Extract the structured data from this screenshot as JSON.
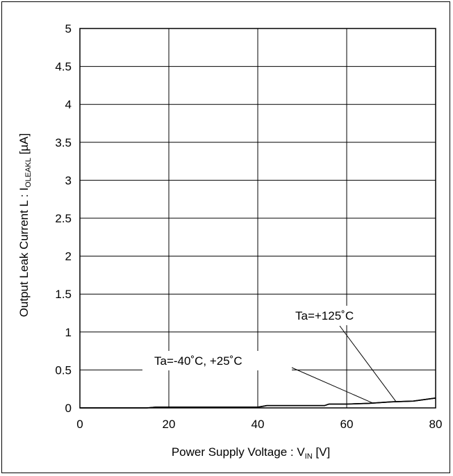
{
  "chart_data": {
    "type": "line",
    "title": "",
    "xlabel": {
      "main": "Power Supply Voltage : V",
      "sub": "IN",
      "unit": " [V]"
    },
    "ylabel": {
      "main": "Output Leak Current L : I",
      "sub": "OLEAKL",
      "unit": " [µA]"
    },
    "xlim": [
      0,
      80
    ],
    "ylim": [
      0,
      5
    ],
    "xticks": [
      0,
      20,
      40,
      60,
      80
    ],
    "xtick_labels": [
      "0",
      "20",
      "40",
      "60",
      "80"
    ],
    "yticks": [
      0,
      0.5,
      1,
      1.5,
      2,
      2.5,
      3,
      3.5,
      4,
      4.5,
      5
    ],
    "ytick_labels": [
      "0",
      "0.5",
      "1",
      "1.5",
      "2",
      "2.5",
      "3",
      "3.5",
      "4",
      "4.5",
      "5"
    ],
    "grid": true,
    "series": [
      {
        "x": [
          0,
          15,
          17,
          20,
          25,
          30,
          35,
          40,
          42,
          45,
          50,
          55,
          56,
          60,
          65,
          70,
          75,
          80
        ],
        "y": [
          0,
          0,
          0.01,
          0.01,
          0.01,
          0.01,
          0.01,
          0.01,
          0.03,
          0.03,
          0.03,
          0.03,
          0.05,
          0.05,
          0.06,
          0.08,
          0.09,
          0.13
        ]
      },
      {
        "x": [
          0,
          15,
          17,
          20,
          25,
          30,
          35,
          40,
          42,
          45,
          50,
          55,
          56,
          60,
          65,
          70,
          75,
          80
        ],
        "y": [
          0,
          0,
          0.01,
          0.01,
          0.01,
          0.01,
          0.01,
          0.01,
          0.03,
          0.03,
          0.03,
          0.03,
          0.05,
          0.05,
          0.06,
          0.08,
          0.09,
          0.13
        ]
      }
    ],
    "annotations": [
      {
        "text": "Ta=+125˚C",
        "pointer_to": [
          71,
          0.09
        ]
      },
      {
        "text": "Ta=-40˚C, +25˚C",
        "pointer_to": [
          66,
          0.06
        ]
      }
    ]
  }
}
